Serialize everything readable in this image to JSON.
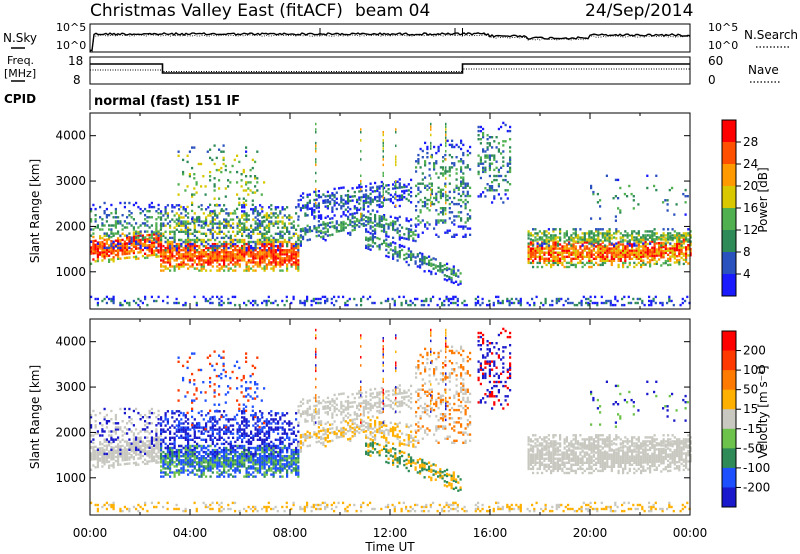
{
  "header": {
    "title": "Christmas Valley East (fitACF)",
    "beam": "beam 04",
    "date": "24/Sep/2014"
  },
  "status": {
    "nsky_label": "N.Sky",
    "nsearch_label": "N.Search",
    "freq_label_line1": "Freq.",
    "freq_label_line2": "[MHz]",
    "nave_label": "Nave",
    "cpid_label": "CPID",
    "cpid_value": "normal (fast) 151 IF",
    "noise_ticks": [
      "10^5",
      "10^0"
    ],
    "freq_ticks_left": [
      "18",
      "8"
    ],
    "freq_ticks_right": [
      "60",
      "0"
    ]
  },
  "colors": {
    "power_scale": [
      "#1a1aff",
      "#2a52be",
      "#2e8b57",
      "#50b050",
      "#d9c800",
      "#ff9900",
      "#ff5000",
      "#ff0000"
    ],
    "velocity_scale": [
      "#1a1acc",
      "#1e50ff",
      "#2e8b57",
      "#6cc24a",
      "#c8c8c0",
      "#ffb000",
      "#ff7a00",
      "#ff3a00",
      "#ff0000"
    ]
  },
  "chart_data": [
    {
      "type": "heatmap",
      "name": "power",
      "ylabel": "Slant Range [km]",
      "xlabel": "Time UT",
      "xlim": [
        "00:00",
        "24:00"
      ],
      "ylim": [
        180,
        4500
      ],
      "x_ticks": [
        "00:00",
        "04:00",
        "08:00",
        "12:00",
        "16:00",
        "20:00",
        "00:00"
      ],
      "y_ticks": [
        1000,
        2000,
        3000,
        4000
      ],
      "colorbar_label": "Power [dB]",
      "colorbar_ticks": [
        "28",
        "24",
        "20",
        "16",
        "12",
        "8",
        "4"
      ],
      "colorbar_range": [
        0,
        30
      ]
    },
    {
      "type": "heatmap",
      "name": "velocity",
      "ylabel": "Slant Range [km]",
      "xlabel": "Time UT",
      "xlim": [
        "00:00",
        "24:00"
      ],
      "ylim": [
        180,
        4500
      ],
      "x_ticks": [
        "00:00",
        "04:00",
        "08:00",
        "12:00",
        "16:00",
        "20:00",
        "00:00"
      ],
      "y_ticks": [
        1000,
        2000,
        3000,
        4000
      ],
      "colorbar_label": "Velocity [m s⁻¹]",
      "colorbar_ticks": [
        "200",
        "100",
        "50",
        "15",
        "-15",
        "-50",
        "-100",
        "-200"
      ],
      "colorbar_range": [
        -250,
        250
      ]
    }
  ],
  "axis": {
    "xlabel": "Time UT"
  }
}
